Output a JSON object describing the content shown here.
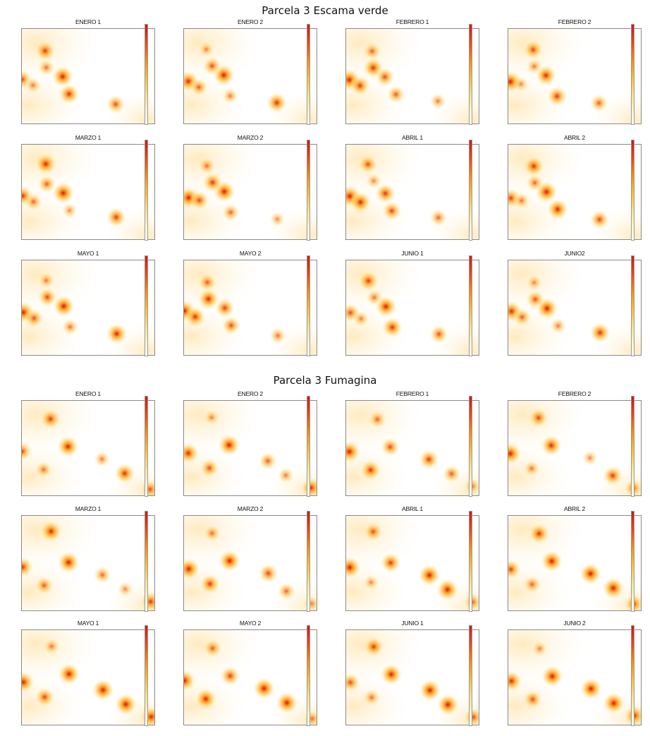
{
  "sections": [
    {
      "title": "Parcela 3 Escama verde",
      "colors": {
        "low": "#ffffff",
        "mid": "#ffc23a",
        "high": "#d81206"
      },
      "panels": [
        {
          "title": "ENERO 1"
        },
        {
          "title": "ENERO 2"
        },
        {
          "title": "FEBRERO 1"
        },
        {
          "title": "FEBRERO 2"
        },
        {
          "title": "MARZO 1"
        },
        {
          "title": "MARZO 2"
        },
        {
          "title": "ABRIL 1"
        },
        {
          "title": "ABRIL 2"
        },
        {
          "title": "MAYO 1"
        },
        {
          "title": "MAYO 2"
        },
        {
          "title": "JUNIO 1"
        },
        {
          "title": "JUNIO2"
        }
      ]
    },
    {
      "title": "Parcela 3 Fumagina",
      "colors": {
        "low": "#ffffff",
        "mid": "#ffc23a",
        "high": "#d81206"
      },
      "panels": [
        {
          "title": "ENERO 1"
        },
        {
          "title": "ENERO 2"
        },
        {
          "title": "FEBRERO 1"
        },
        {
          "title": "FEBRERO 2"
        },
        {
          "title": "MARZO 1"
        },
        {
          "title": "MARZO 2"
        },
        {
          "title": "ABRIL 1"
        },
        {
          "title": "ABRIL 2"
        },
        {
          "title": "MAYO 1"
        },
        {
          "title": "MAYO 2"
        },
        {
          "title": "JUNIO 1"
        },
        {
          "title": "JUNIO 2"
        }
      ]
    }
  ],
  "chart_data": [
    {
      "type": "heatmap",
      "title": "Parcela 3 Escama verde",
      "subplots": [
        "ENERO 1",
        "ENERO 2",
        "FEBRERO 1",
        "FEBRERO 2",
        "MARZO 1",
        "MARZO 2",
        "ABRIL 1",
        "ABRIL 2",
        "MAYO 1",
        "MAYO 2",
        "JUNIO 1",
        "JUNIO2"
      ],
      "colorscale": [
        "#ffffff",
        "#ffe48a",
        "#ffc23a",
        "#ff8f10",
        "#d81206"
      ],
      "hotspots_xy": [
        [
          0.02,
          0.55
        ],
        [
          0.18,
          0.22
        ],
        [
          0.3,
          0.5
        ],
        [
          0.1,
          0.6
        ],
        [
          0.36,
          0.7
        ],
        [
          0.7,
          0.78
        ],
        [
          0.2,
          0.4
        ]
      ],
      "legend": "right"
    },
    {
      "type": "heatmap",
      "title": "Parcela 3 Fumagina",
      "subplots": [
        "ENERO 1",
        "ENERO 2",
        "FEBRERO 1",
        "FEBRERO 2",
        "MARZO 1",
        "MARZO 2",
        "ABRIL 1",
        "ABRIL 2",
        "MAYO 1",
        "MAYO 2",
        "JUNIO 1",
        "JUNIO 2"
      ],
      "colorscale": [
        "#ffffff",
        "#ffe48a",
        "#ffc23a",
        "#ff8f10",
        "#d81206"
      ],
      "hotspots_xy": [
        [
          0.02,
          0.55
        ],
        [
          0.22,
          0.18
        ],
        [
          0.34,
          0.48
        ],
        [
          0.62,
          0.62
        ],
        [
          0.78,
          0.78
        ],
        [
          0.96,
          0.92
        ],
        [
          0.18,
          0.72
        ]
      ],
      "legend": "right"
    }
  ]
}
